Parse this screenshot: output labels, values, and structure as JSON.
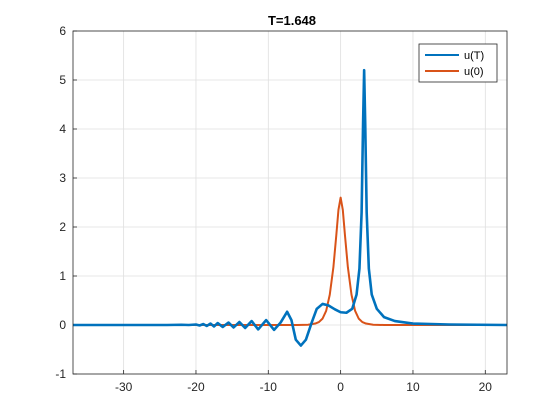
{
  "chart_data": {
    "type": "line",
    "title": "T=1.648",
    "xlabel": "",
    "ylabel": "",
    "xlim": [
      -37,
      23
    ],
    "ylim": [
      -1,
      6
    ],
    "xticks": [
      -30,
      -20,
      -10,
      0,
      10,
      20
    ],
    "yticks": [
      -1,
      0,
      1,
      2,
      3,
      4,
      5,
      6
    ],
    "grid": true,
    "legend_position": "top-right",
    "series": [
      {
        "name": "u(T)",
        "color": "#0072BD",
        "points": [
          [
            -37,
            0.0
          ],
          [
            -30,
            0.0
          ],
          [
            -24,
            0.0
          ],
          [
            -22,
            0.005
          ],
          [
            -21,
            0.0
          ],
          [
            -20,
            0.01
          ],
          [
            -19.5,
            -0.01
          ],
          [
            -19,
            0.02
          ],
          [
            -18.5,
            -0.02
          ],
          [
            -18,
            0.03
          ],
          [
            -17.5,
            -0.03
          ],
          [
            -17,
            0.04
          ],
          [
            -16.3,
            -0.04
          ],
          [
            -15.5,
            0.05
          ],
          [
            -14.8,
            -0.05
          ],
          [
            -14,
            0.06
          ],
          [
            -13.2,
            -0.06
          ],
          [
            -12.3,
            0.08
          ],
          [
            -11.4,
            -0.09
          ],
          [
            -10.3,
            0.1
          ],
          [
            -9.2,
            -0.1
          ],
          [
            -8.3,
            0.05
          ],
          [
            -7.4,
            0.27
          ],
          [
            -6.8,
            0.1
          ],
          [
            -6.2,
            -0.3
          ],
          [
            -5.5,
            -0.42
          ],
          [
            -4.8,
            -0.3
          ],
          [
            -4.0,
            0.05
          ],
          [
            -3.3,
            0.33
          ],
          [
            -2.5,
            0.43
          ],
          [
            -1.7,
            0.4
          ],
          [
            -0.8,
            0.32
          ],
          [
            0.0,
            0.26
          ],
          [
            0.8,
            0.25
          ],
          [
            1.6,
            0.33
          ],
          [
            2.2,
            0.62
          ],
          [
            2.6,
            1.15
          ],
          [
            2.9,
            2.3
          ],
          [
            3.1,
            4.1
          ],
          [
            3.25,
            5.2
          ],
          [
            3.4,
            4.1
          ],
          [
            3.6,
            2.3
          ],
          [
            3.9,
            1.15
          ],
          [
            4.3,
            0.62
          ],
          [
            5.0,
            0.33
          ],
          [
            6.0,
            0.16
          ],
          [
            7.5,
            0.08
          ],
          [
            10,
            0.03
          ],
          [
            15,
            0.01
          ],
          [
            23,
            0.0
          ]
        ]
      },
      {
        "name": "u(0)",
        "color": "#D95319",
        "points": [
          [
            -37,
            0.0
          ],
          [
            -6,
            0.0
          ],
          [
            -4.5,
            0.005
          ],
          [
            -3.5,
            0.03
          ],
          [
            -3.0,
            0.06
          ],
          [
            -2.5,
            0.13
          ],
          [
            -2.0,
            0.29
          ],
          [
            -1.5,
            0.62
          ],
          [
            -1.0,
            1.18
          ],
          [
            -0.6,
            1.83
          ],
          [
            -0.3,
            2.35
          ],
          [
            0.0,
            2.6
          ],
          [
            0.3,
            2.35
          ],
          [
            0.6,
            1.83
          ],
          [
            1.0,
            1.18
          ],
          [
            1.5,
            0.62
          ],
          [
            2.0,
            0.29
          ],
          [
            2.5,
            0.13
          ],
          [
            3.0,
            0.06
          ],
          [
            3.5,
            0.03
          ],
          [
            4.5,
            0.005
          ],
          [
            6,
            0.0
          ],
          [
            23,
            0.0
          ]
        ]
      }
    ]
  }
}
